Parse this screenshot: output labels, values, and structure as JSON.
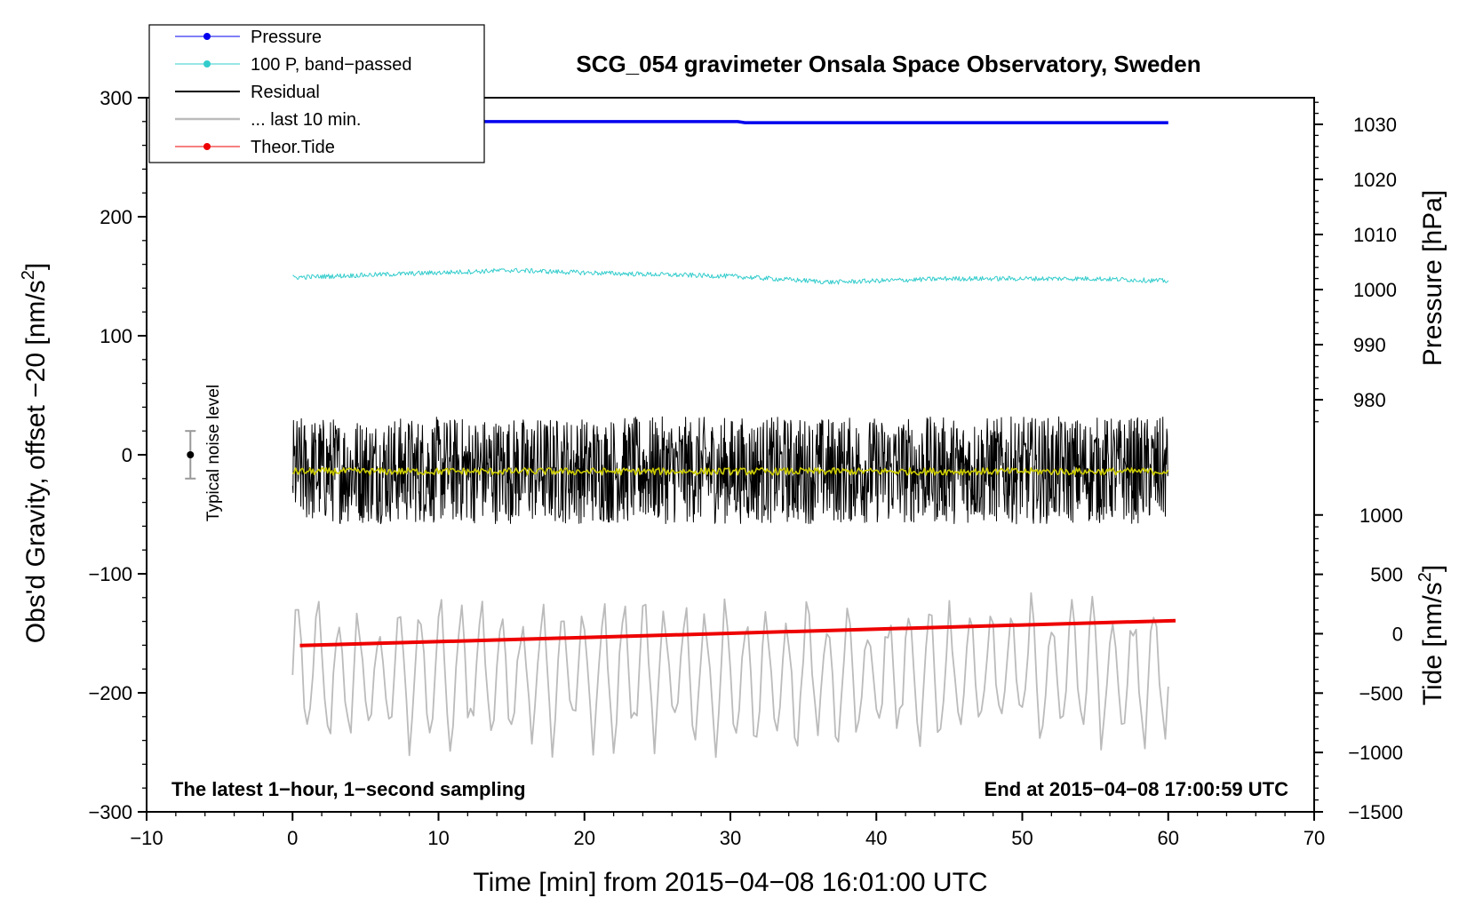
{
  "chart_data": {
    "type": "line",
    "title": "SCG_054 gravimeter Onsala Space Observatory, Sweden",
    "xlabel": "Time [min] from 2015−04−08 16:01:00 UTC",
    "ylabel_left": "Obs'd Gravity, offset −20 [nm/s",
    "ylabel_left_sup": "2",
    "ylabel_left_end": "]",
    "ylabel_right_pressure": "Pressure [hPa]",
    "ylabel_right_tide": "Tide [nm/s",
    "ylabel_right_tide_sup": "2",
    "ylabel_right_tide_end": "]",
    "xlim": [
      -10,
      70
    ],
    "ylim_left": [
      -300,
      300
    ],
    "x_ticks": [
      "−10",
      "0",
      "10",
      "20",
      "30",
      "40",
      "50",
      "60",
      "70"
    ],
    "x_tick_values": [
      -10,
      0,
      10,
      20,
      30,
      40,
      50,
      60,
      70
    ],
    "left_ticks": [
      "−300",
      "−200",
      "−100",
      "0",
      "100",
      "200",
      "300"
    ],
    "left_tick_values": [
      -300,
      -200,
      -100,
      0,
      100,
      200,
      300
    ],
    "pressure_ticks": [
      "980",
      "990",
      "1000",
      "1010",
      "1020",
      "1030"
    ],
    "pressure_tick_values": [
      980,
      990,
      1000,
      1010,
      1020,
      1030
    ],
    "tide_ticks": [
      "−1500",
      "−1000",
      "−500",
      "0",
      "500",
      "1000"
    ],
    "tide_tick_values": [
      -1500,
      -1000,
      -500,
      0,
      500,
      1000
    ],
    "legend": [
      {
        "label": "Pressure",
        "color": "#0000ee",
        "marker": true
      },
      {
        "label": "100 P, band−passed",
        "color": "#33cccc",
        "marker": true
      },
      {
        "label": "Residual",
        "color": "#000000",
        "marker": false
      },
      {
        "label": "... last 10 min.",
        "color": "#bbbbbb",
        "marker": false
      },
      {
        "label": "Theor.Tide",
        "color": "#ee0000",
        "marker": true
      }
    ],
    "annotations": {
      "bottom_left": "The latest 1−hour, 1−second sampling",
      "bottom_right": "End at 2015−04−08 17:00:59 UTC",
      "noise_label": "Typical noise level"
    },
    "series": [
      {
        "name": "Pressure",
        "color": "#0000ee",
        "axis": "pressure",
        "x": [
          0,
          30.5,
          31,
          60
        ],
        "values": [
          1030.5,
          1030.5,
          1030.3,
          1030.3
        ]
      },
      {
        "name": "100 P, band-passed",
        "color": "#33cccc",
        "axis": "left",
        "x": [
          0,
          10,
          15,
          20,
          30,
          37,
          45,
          55,
          60
        ],
        "values": [
          149,
          153,
          155,
          153,
          150,
          145,
          148,
          148,
          146
        ],
        "noise_amplitude": 2
      },
      {
        "name": "Residual",
        "color": "#000000",
        "axis": "left",
        "x": [
          0,
          60
        ],
        "values": [
          -13,
          -13
        ],
        "noise_amplitude": 45
      },
      {
        "name": "Residual smoothed",
        "color": "#cccc00",
        "axis": "left",
        "x": [
          0,
          60
        ],
        "values": [
          -14,
          -14
        ],
        "noise_amplitude": 3
      },
      {
        "name": "... last 10 min.",
        "color": "#bbbbbb",
        "axis": "left",
        "x": [
          0,
          60
        ],
        "values": [
          -185,
          -185
        ],
        "noise_amplitude": 70
      },
      {
        "name": "Theor.Tide",
        "color": "#ee0000",
        "axis": "tide",
        "x": [
          0.5,
          60.5
        ],
        "values": [
          -100,
          110
        ]
      }
    ],
    "noise_bar": {
      "x": -7,
      "center": 0,
      "low": -20,
      "high": 20
    }
  }
}
